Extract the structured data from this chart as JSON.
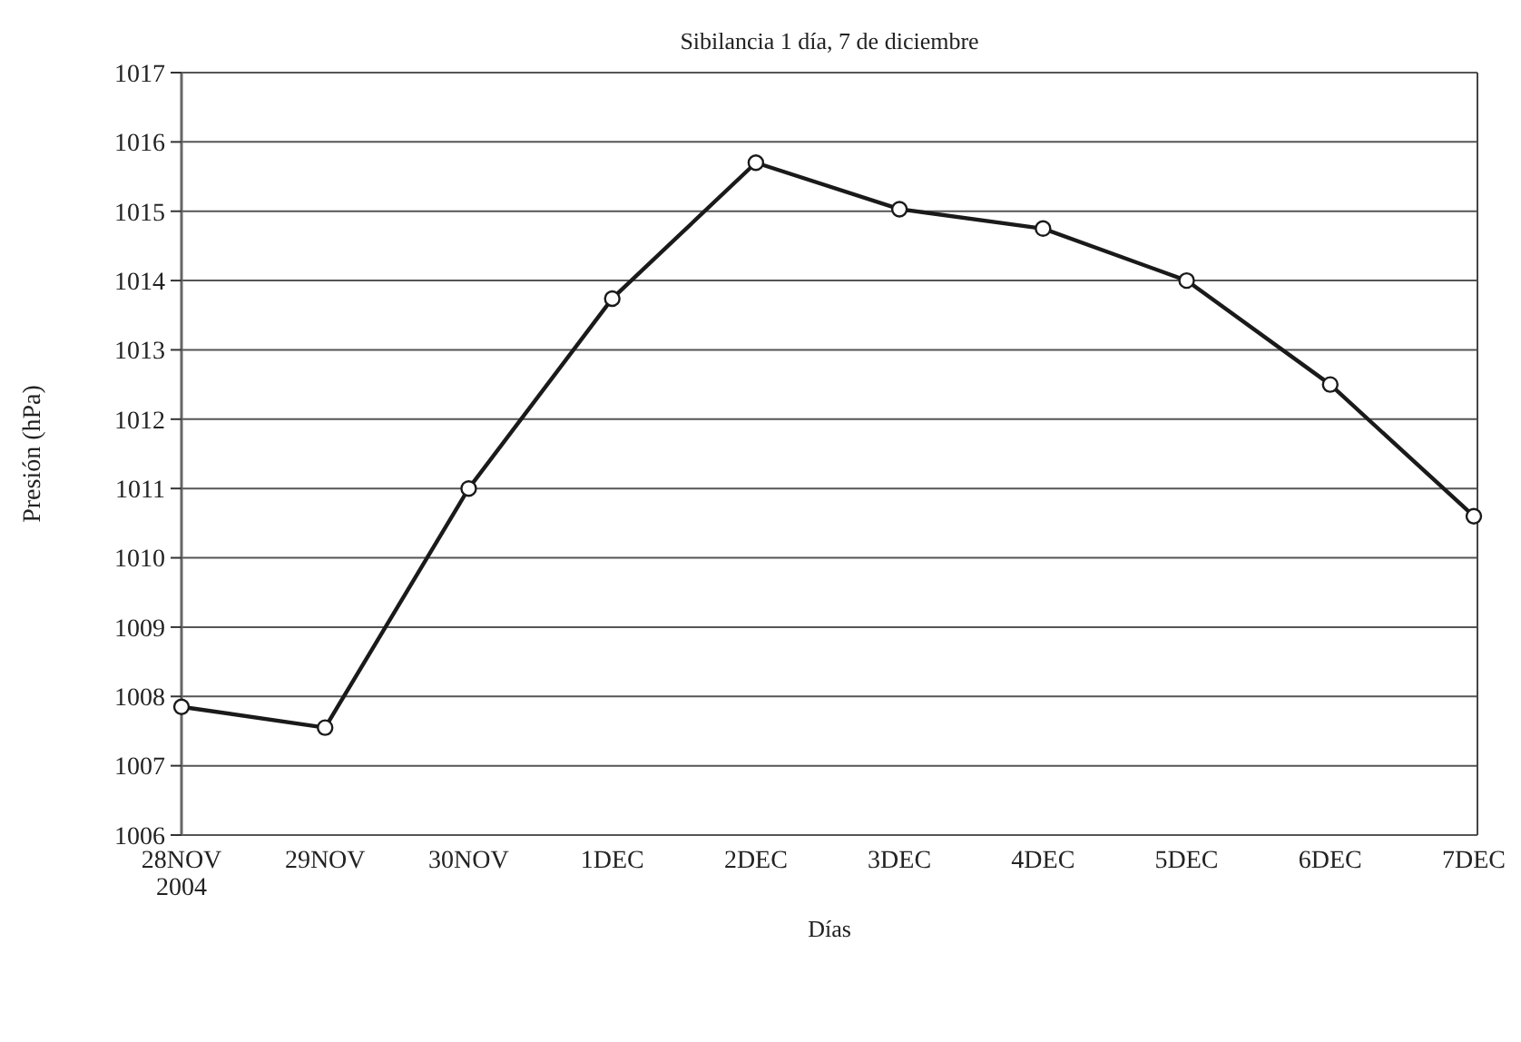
{
  "chart_data": {
    "type": "line",
    "title": "Sibilancia 1 día, 7 de diciembre",
    "xlabel": "Días",
    "ylabel": "Presión (hPa)",
    "categories": [
      "28NOV\n2004",
      "29NOV",
      "30NOV",
      "1DEC",
      "2DEC",
      "3DEC",
      "4DEC",
      "5DEC",
      "6DEC",
      "7DEC"
    ],
    "series": [
      {
        "color": "#1a1a1a",
        "values": [
          1007.85,
          1007.55,
          1011.0,
          1013.74,
          1015.7,
          1015.03,
          1014.75,
          1014.0,
          1012.5,
          1010.6
        ]
      }
    ],
    "ylim": [
      1006,
      1017
    ],
    "yticks": [
      1006,
      1007,
      1008,
      1009,
      1010,
      1011,
      1012,
      1013,
      1014,
      1015,
      1016,
      1017
    ],
    "grid": "y",
    "marker": "circle",
    "line_style": "solid"
  }
}
